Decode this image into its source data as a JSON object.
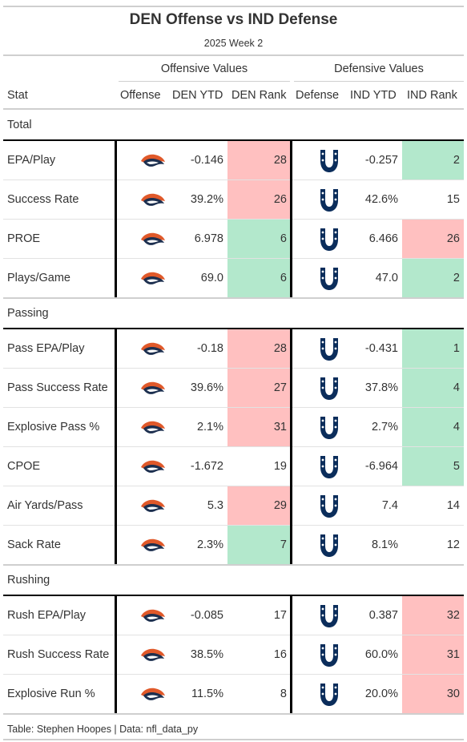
{
  "title": "DEN Offense vs IND Defense",
  "subtitle": "2025 Week 2",
  "spanners": {
    "offense": "Offensive Values",
    "defense": "Defensive Values"
  },
  "columns": {
    "stat": "Stat",
    "offense": "Offense",
    "den_ytd": "DEN YTD",
    "den_rank": "DEN Rank",
    "defense": "Defense",
    "ind_ytd": "IND YTD",
    "ind_rank": "IND Rank"
  },
  "colors": {
    "good": "#b3e8cc",
    "bad": "#ffc0c0",
    "none": "#ffffff",
    "broncos_orange": "#e0592a",
    "broncos_navy": "#1c2f4f",
    "colts_blue": "#0b2d5b"
  },
  "icons": {
    "offense": "broncos-logo-icon",
    "defense": "colts-horseshoe-icon"
  },
  "groups": [
    {
      "name": "Total",
      "rows": [
        {
          "stat": "EPA/Play",
          "den_ytd": "-0.146",
          "den_rank": "28",
          "den_color": "bad",
          "ind_ytd": "-0.257",
          "ind_rank": "2",
          "ind_color": "good"
        },
        {
          "stat": "Success Rate",
          "den_ytd": "39.2%",
          "den_rank": "26",
          "den_color": "bad",
          "ind_ytd": "42.6%",
          "ind_rank": "15",
          "ind_color": "none"
        },
        {
          "stat": "PROE",
          "den_ytd": "6.978",
          "den_rank": "6",
          "den_color": "good",
          "ind_ytd": "6.466",
          "ind_rank": "26",
          "ind_color": "bad"
        },
        {
          "stat": "Plays/Game",
          "den_ytd": "69.0",
          "den_rank": "6",
          "den_color": "good",
          "ind_ytd": "47.0",
          "ind_rank": "2",
          "ind_color": "good"
        }
      ]
    },
    {
      "name": "Passing",
      "rows": [
        {
          "stat": "Pass EPA/Play",
          "den_ytd": "-0.18",
          "den_rank": "28",
          "den_color": "bad",
          "ind_ytd": "-0.431",
          "ind_rank": "1",
          "ind_color": "good"
        },
        {
          "stat": "Pass Success Rate",
          "den_ytd": "39.6%",
          "den_rank": "27",
          "den_color": "bad",
          "ind_ytd": "37.8%",
          "ind_rank": "4",
          "ind_color": "good"
        },
        {
          "stat": "Explosive Pass %",
          "den_ytd": "2.1%",
          "den_rank": "31",
          "den_color": "bad",
          "ind_ytd": "2.7%",
          "ind_rank": "4",
          "ind_color": "good"
        },
        {
          "stat": "CPOE",
          "den_ytd": "-1.672",
          "den_rank": "19",
          "den_color": "none",
          "ind_ytd": "-6.964",
          "ind_rank": "5",
          "ind_color": "good"
        },
        {
          "stat": "Air Yards/Pass",
          "den_ytd": "5.3",
          "den_rank": "29",
          "den_color": "bad",
          "ind_ytd": "7.4",
          "ind_rank": "14",
          "ind_color": "none"
        },
        {
          "stat": "Sack Rate",
          "den_ytd": "2.3%",
          "den_rank": "7",
          "den_color": "good",
          "ind_ytd": "8.1%",
          "ind_rank": "12",
          "ind_color": "none"
        }
      ]
    },
    {
      "name": "Rushing",
      "rows": [
        {
          "stat": "Rush EPA/Play",
          "den_ytd": "-0.085",
          "den_rank": "17",
          "den_color": "none",
          "ind_ytd": "0.387",
          "ind_rank": "32",
          "ind_color": "bad"
        },
        {
          "stat": "Rush Success Rate",
          "den_ytd": "38.5%",
          "den_rank": "16",
          "den_color": "none",
          "ind_ytd": "60.0%",
          "ind_rank": "31",
          "ind_color": "bad"
        },
        {
          "stat": "Explosive Run %",
          "den_ytd": "11.5%",
          "den_rank": "8",
          "den_color": "none",
          "ind_ytd": "20.0%",
          "ind_rank": "30",
          "ind_color": "bad"
        }
      ]
    }
  ],
  "footer": "Table: Stephen Hoopes | Data: nfl_data_py"
}
